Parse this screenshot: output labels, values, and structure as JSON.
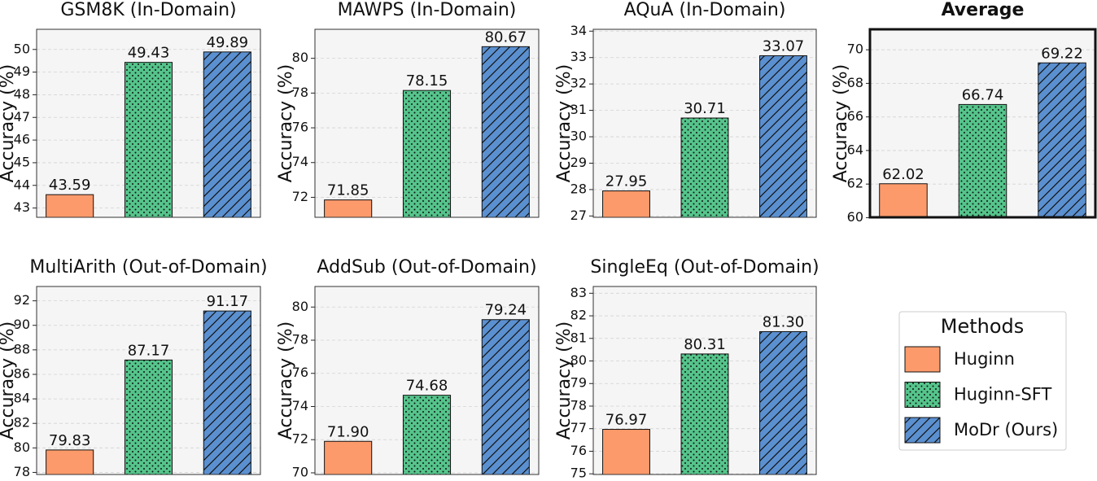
{
  "chart_data": [
    {
      "type": "bar",
      "title": "GSM8K (In-Domain)",
      "ylabel": "Accuracy (%)",
      "values": [
        43.59,
        49.43,
        49.89
      ],
      "value_labels": [
        "43.59",
        "49.43",
        "49.89"
      ],
      "ylim": [
        42.59,
        50.89
      ],
      "yticks": [
        43,
        44,
        45,
        46,
        47,
        48,
        49,
        50
      ],
      "grid": true,
      "emphasis": false
    },
    {
      "type": "bar",
      "title": "MAWPS (In-Domain)",
      "ylabel": "Accuracy (%)",
      "values": [
        71.85,
        78.15,
        80.67
      ],
      "value_labels": [
        "71.85",
        "78.15",
        "80.67"
      ],
      "ylim": [
        70.85,
        81.67
      ],
      "yticks": [
        72,
        74,
        76,
        78,
        80
      ],
      "grid": true,
      "emphasis": false
    },
    {
      "type": "bar",
      "title": "AQuA (In-Domain)",
      "ylabel": "Accuracy (%)",
      "values": [
        27.95,
        30.71,
        33.07
      ],
      "value_labels": [
        "27.95",
        "30.71",
        "33.07"
      ],
      "ylim": [
        26.95,
        34.07
      ],
      "yticks": [
        27,
        28,
        29,
        30,
        31,
        32,
        33,
        34
      ],
      "grid": true,
      "emphasis": false
    },
    {
      "type": "bar",
      "title": "Average",
      "ylabel": "Accuracy (%)",
      "values": [
        62.02,
        66.74,
        69.22
      ],
      "value_labels": [
        "62.02",
        "66.74",
        "69.22"
      ],
      "ylim": [
        60.02,
        71.22
      ],
      "yticks": [
        60,
        62,
        64,
        66,
        68,
        70
      ],
      "grid": true,
      "emphasis": true
    },
    {
      "type": "bar",
      "title": "MultiArith (Out-of-Domain)",
      "ylabel": "Accuracy (%)",
      "values": [
        79.83,
        87.17,
        91.17
      ],
      "value_labels": [
        "79.83",
        "87.17",
        "91.17"
      ],
      "ylim": [
        77.83,
        93.17
      ],
      "yticks": [
        78,
        80,
        82,
        84,
        86,
        88,
        90,
        92
      ],
      "grid": true,
      "emphasis": false
    },
    {
      "type": "bar",
      "title": "AddSub (Out-of-Domain)",
      "ylabel": "Accuracy (%)",
      "values": [
        71.9,
        74.68,
        79.24
      ],
      "value_labels": [
        "71.90",
        "74.68",
        "79.24"
      ],
      "ylim": [
        69.9,
        81.24
      ],
      "yticks": [
        70,
        72,
        74,
        76,
        78,
        80
      ],
      "grid": true,
      "emphasis": false
    },
    {
      "type": "bar",
      "title": "SingleEq (Out-of-Domain)",
      "ylabel": "Accuracy (%)",
      "values": [
        76.97,
        80.31,
        81.3
      ],
      "value_labels": [
        "76.97",
        "80.31",
        "81.30"
      ],
      "ylim": [
        74.97,
        83.3
      ],
      "yticks": [
        75,
        76,
        77,
        78,
        79,
        80,
        81,
        82,
        83
      ],
      "grid": true,
      "emphasis": false
    }
  ],
  "legend": {
    "title": "Methods",
    "series": [
      {
        "name": "Huginn",
        "color": "#fc9a6b",
        "hatch": "none"
      },
      {
        "name": "Huginn-SFT",
        "color": "#55c48b",
        "hatch": "dots"
      },
      {
        "name": "MoDr (Ours)",
        "color": "#5b90d0",
        "hatch": "diagonal"
      }
    ]
  }
}
